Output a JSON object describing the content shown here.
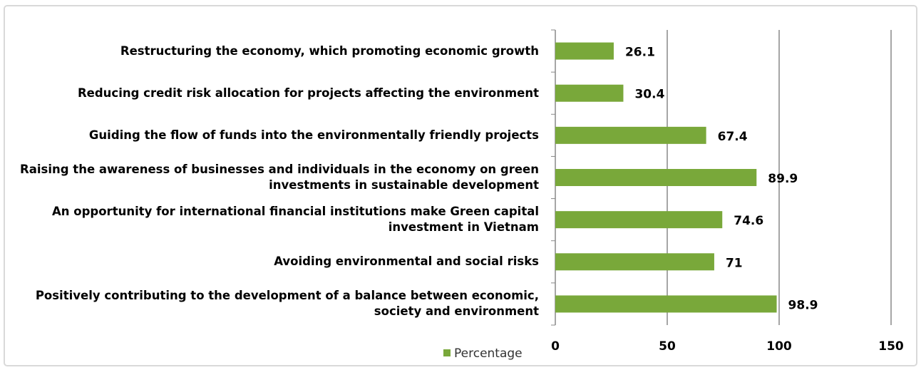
{
  "chart_data": {
    "type": "bar",
    "orientation": "horizontal",
    "categories": [
      "Restructuring the economy, which promoting economic growth",
      "Reducing credit risk allocation for projects affecting the environment",
      "Guiding the flow of funds into the environmentally friendly projects",
      "Raising the awareness of businesses and individuals in the economy on green investments in sustainable development",
      "An opportunity for international financial institutions make Green capital investment in Vietnam",
      "Avoiding environmental and social risks",
      "Positively contributing to the development of a balance between economic, society and environment"
    ],
    "series": [
      {
        "name": "Percentage",
        "color": "#79a83a",
        "values": [
          26.1,
          30.4,
          67.4,
          89.9,
          74.6,
          71,
          98.9
        ]
      }
    ],
    "xlim": [
      0,
      150
    ],
    "xticks": [
      0,
      50,
      100,
      150
    ],
    "grid": true,
    "legend": "bottom"
  }
}
